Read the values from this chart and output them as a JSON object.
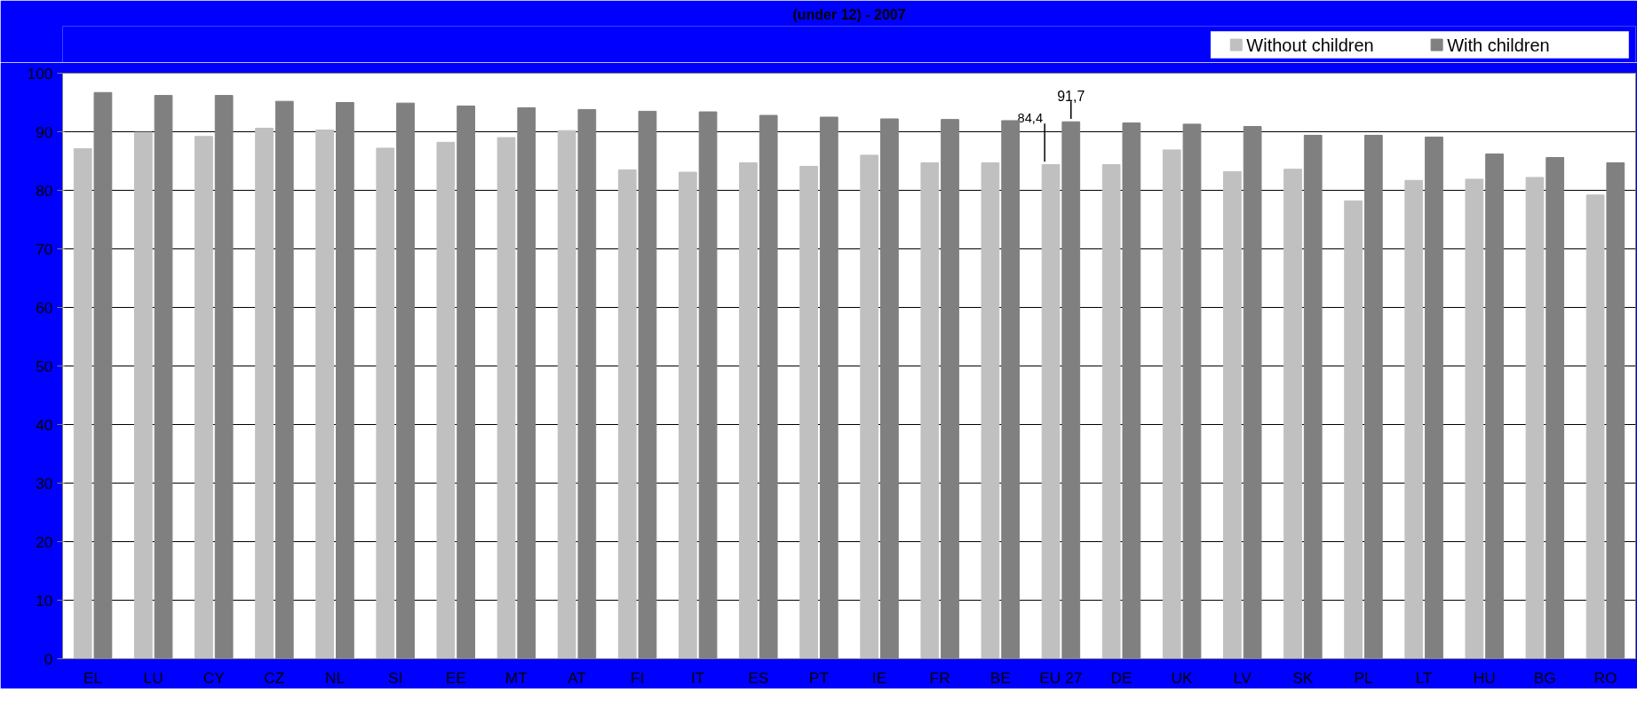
{
  "chart_data": {
    "type": "bar",
    "title": "(under 12) - 2007",
    "categories": [
      "EL",
      "LU",
      "CY",
      "CZ",
      "NL",
      "SI",
      "EE",
      "MT",
      "AT",
      "FI",
      "IT",
      "ES",
      "PT",
      "IE",
      "FR",
      "BE",
      "EU 27",
      "DE",
      "UK",
      "LV",
      "SK",
      "PL",
      "LT",
      "HU",
      "BG",
      "RO"
    ],
    "series": [
      {
        "name": "Without children",
        "color": "#c0c0c0",
        "values": [
          87.1,
          89.9,
          89.2,
          90.6,
          90.3,
          87.2,
          88.2,
          89.0,
          90.2,
          83.5,
          83.1,
          84.7,
          84.1,
          86.0,
          84.7,
          84.7,
          84.4,
          84.4,
          86.9,
          83.2,
          83.6,
          78.2,
          81.7,
          81.9,
          82.2,
          79.2
        ],
        "value_labels": [
          null,
          null,
          null,
          null,
          null,
          null,
          null,
          null,
          null,
          null,
          null,
          null,
          null,
          null,
          null,
          null,
          "84,4",
          null,
          null,
          null,
          null,
          null,
          null,
          null,
          null,
          null
        ]
      },
      {
        "name": "With children",
        "color": "#808080",
        "values": [
          96.7,
          96.2,
          96.2,
          95.2,
          95.0,
          94.9,
          94.4,
          94.1,
          93.8,
          93.5,
          93.4,
          92.8,
          92.5,
          92.2,
          92.1,
          91.9,
          91.7,
          91.5,
          91.3,
          90.9,
          89.4,
          89.4,
          89.1,
          86.2,
          85.6,
          84.7
        ],
        "value_labels": [
          null,
          null,
          null,
          null,
          null,
          null,
          null,
          null,
          null,
          null,
          null,
          null,
          null,
          null,
          null,
          null,
          "91,7",
          null,
          null,
          null,
          null,
          null,
          null,
          null,
          null,
          null
        ]
      }
    ],
    "ylim": [
      0,
      100
    ],
    "yticks": [
      0,
      10,
      20,
      30,
      40,
      50,
      60,
      70,
      80,
      90,
      100
    ],
    "grid": "y",
    "legend": "top right"
  }
}
